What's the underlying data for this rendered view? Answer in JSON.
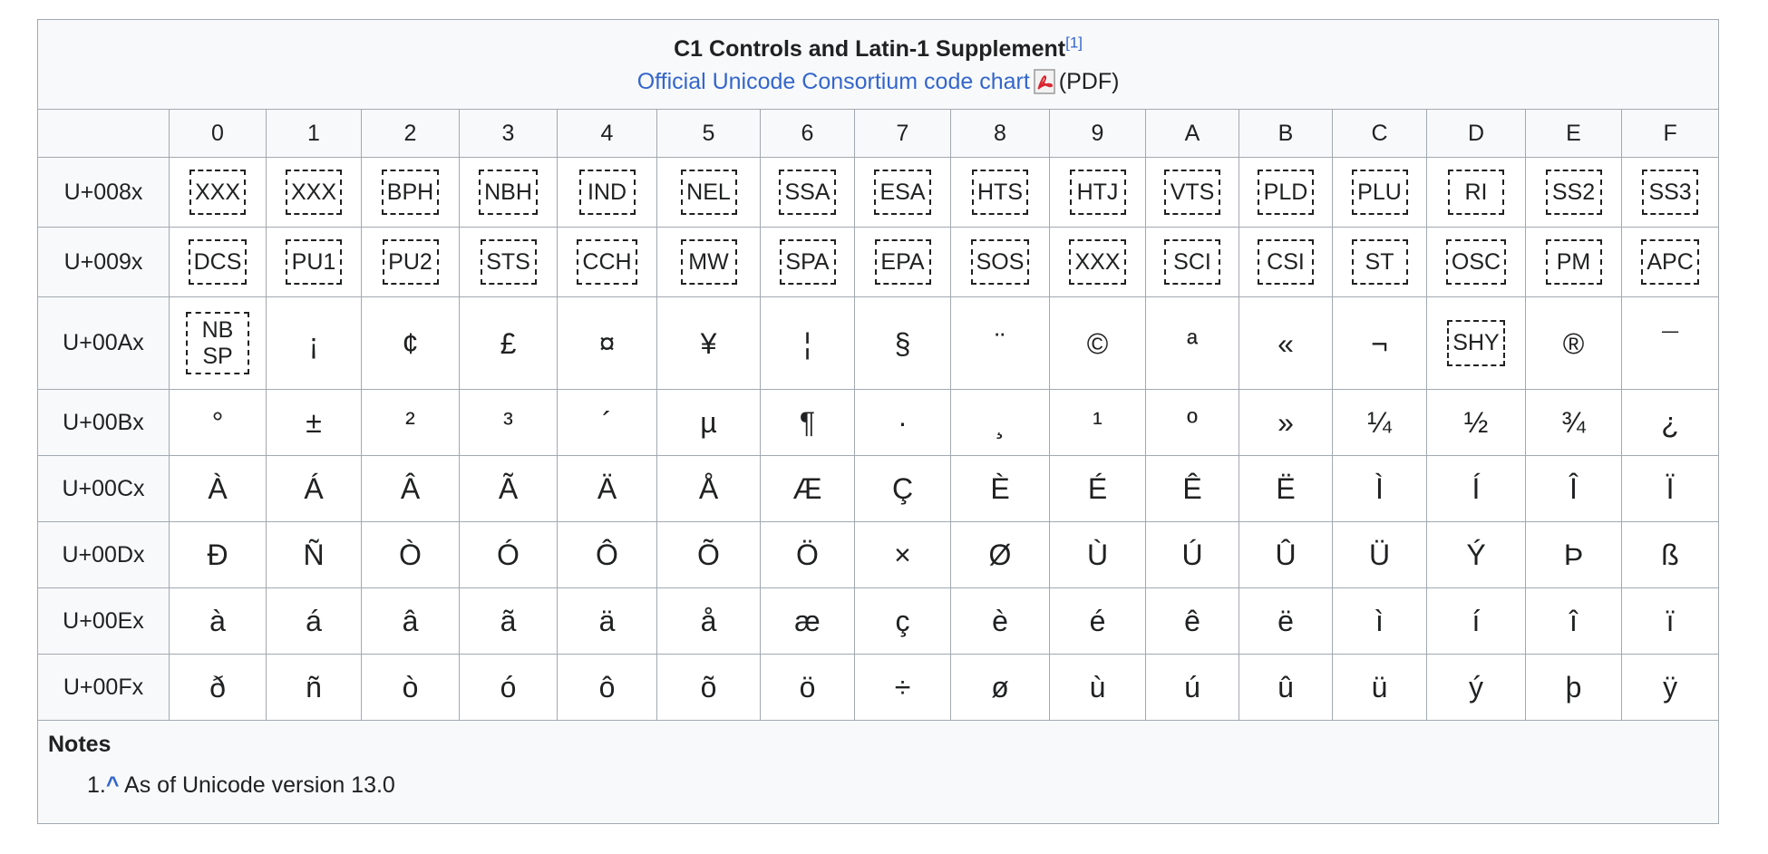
{
  "title": "C1 Controls and Latin-1 Supplement",
  "title_ref": "[1]",
  "subtitle_link": "Official Unicode Consortium code chart",
  "subtitle_suffix": "(PDF)",
  "columns": [
    "0",
    "1",
    "2",
    "3",
    "4",
    "5",
    "6",
    "7",
    "8",
    "9",
    "A",
    "B",
    "C",
    "D",
    "E",
    "F"
  ],
  "rows": [
    {
      "label": "U+008x",
      "cells": [
        {
          "t": "XXX",
          "c": true
        },
        {
          "t": "XXX",
          "c": true
        },
        {
          "t": "BPH",
          "c": true
        },
        {
          "t": "NBH",
          "c": true
        },
        {
          "t": "IND",
          "c": true
        },
        {
          "t": "NEL",
          "c": true
        },
        {
          "t": "SSA",
          "c": true
        },
        {
          "t": "ESA",
          "c": true
        },
        {
          "t": "HTS",
          "c": true
        },
        {
          "t": "HTJ",
          "c": true
        },
        {
          "t": "VTS",
          "c": true
        },
        {
          "t": "PLD",
          "c": true
        },
        {
          "t": "PLU",
          "c": true
        },
        {
          "t": "RI",
          "c": true
        },
        {
          "t": "SS2",
          "c": true
        },
        {
          "t": "SS3",
          "c": true
        }
      ]
    },
    {
      "label": "U+009x",
      "cells": [
        {
          "t": "DCS",
          "c": true
        },
        {
          "t": "PU1",
          "c": true
        },
        {
          "t": "PU2",
          "c": true
        },
        {
          "t": "STS",
          "c": true
        },
        {
          "t": "CCH",
          "c": true
        },
        {
          "t": "MW",
          "c": true
        },
        {
          "t": "SPA",
          "c": true
        },
        {
          "t": "EPA",
          "c": true
        },
        {
          "t": "SOS",
          "c": true
        },
        {
          "t": "XXX",
          "c": true
        },
        {
          "t": "SCI",
          "c": true
        },
        {
          "t": "CSI",
          "c": true
        },
        {
          "t": "ST",
          "c": true
        },
        {
          "t": "OSC",
          "c": true
        },
        {
          "t": "PM",
          "c": true
        },
        {
          "t": "APC",
          "c": true
        }
      ]
    },
    {
      "label": "U+00Ax",
      "cells": [
        {
          "t": "NB",
          "t2": "SP",
          "c": true
        },
        {
          "t": "¡"
        },
        {
          "t": "¢"
        },
        {
          "t": "£"
        },
        {
          "t": "¤"
        },
        {
          "t": "¥"
        },
        {
          "t": "¦"
        },
        {
          "t": "§"
        },
        {
          "t": "¨"
        },
        {
          "t": "©"
        },
        {
          "t": "ª"
        },
        {
          "t": "«"
        },
        {
          "t": "¬"
        },
        {
          "t": "SHY",
          "c": true
        },
        {
          "t": "®"
        },
        {
          "t": "¯"
        }
      ]
    },
    {
      "label": "U+00Bx",
      "cells": [
        {
          "t": "°"
        },
        {
          "t": "±"
        },
        {
          "t": "²"
        },
        {
          "t": "³"
        },
        {
          "t": "´"
        },
        {
          "t": "µ"
        },
        {
          "t": "¶"
        },
        {
          "t": "·"
        },
        {
          "t": "¸"
        },
        {
          "t": "¹"
        },
        {
          "t": "º"
        },
        {
          "t": "»"
        },
        {
          "t": "¼"
        },
        {
          "t": "½"
        },
        {
          "t": "¾"
        },
        {
          "t": "¿"
        }
      ]
    },
    {
      "label": "U+00Cx",
      "cells": [
        {
          "t": "À"
        },
        {
          "t": "Á"
        },
        {
          "t": "Â"
        },
        {
          "t": "Ã"
        },
        {
          "t": "Ä"
        },
        {
          "t": "Å"
        },
        {
          "t": "Æ"
        },
        {
          "t": "Ç"
        },
        {
          "t": "È"
        },
        {
          "t": "É"
        },
        {
          "t": "Ê"
        },
        {
          "t": "Ë"
        },
        {
          "t": "Ì"
        },
        {
          "t": "Í"
        },
        {
          "t": "Î"
        },
        {
          "t": "Ï"
        }
      ]
    },
    {
      "label": "U+00Dx",
      "cells": [
        {
          "t": "Ð"
        },
        {
          "t": "Ñ"
        },
        {
          "t": "Ò"
        },
        {
          "t": "Ó"
        },
        {
          "t": "Ô"
        },
        {
          "t": "Õ"
        },
        {
          "t": "Ö"
        },
        {
          "t": "×"
        },
        {
          "t": "Ø"
        },
        {
          "t": "Ù"
        },
        {
          "t": "Ú"
        },
        {
          "t": "Û"
        },
        {
          "t": "Ü"
        },
        {
          "t": "Ý"
        },
        {
          "t": "Þ"
        },
        {
          "t": "ß"
        }
      ]
    },
    {
      "label": "U+00Ex",
      "cells": [
        {
          "t": "à"
        },
        {
          "t": "á"
        },
        {
          "t": "â"
        },
        {
          "t": "ã"
        },
        {
          "t": "ä"
        },
        {
          "t": "å"
        },
        {
          "t": "æ"
        },
        {
          "t": "ç"
        },
        {
          "t": "è"
        },
        {
          "t": "é"
        },
        {
          "t": "ê"
        },
        {
          "t": "ë"
        },
        {
          "t": "ì"
        },
        {
          "t": "í"
        },
        {
          "t": "î"
        },
        {
          "t": "ï"
        }
      ]
    },
    {
      "label": "U+00Fx",
      "cells": [
        {
          "t": "ð"
        },
        {
          "t": "ñ"
        },
        {
          "t": "ò"
        },
        {
          "t": "ó"
        },
        {
          "t": "ô"
        },
        {
          "t": "õ"
        },
        {
          "t": "ö"
        },
        {
          "t": "÷"
        },
        {
          "t": "ø"
        },
        {
          "t": "ù"
        },
        {
          "t": "ú"
        },
        {
          "t": "û"
        },
        {
          "t": "ü"
        },
        {
          "t": "ý"
        },
        {
          "t": "þ"
        },
        {
          "t": "ÿ"
        }
      ]
    }
  ],
  "notes": {
    "heading": "Notes",
    "items": [
      {
        "num": "1.",
        "caret": "^",
        "text": "As of Unicode version 13.0"
      }
    ]
  },
  "icons": {
    "pdf": "pdf-file-icon"
  },
  "colors": {
    "link": "#3366cc",
    "border": "#a2a9b1",
    "header_bg": "#f8f9fa"
  }
}
